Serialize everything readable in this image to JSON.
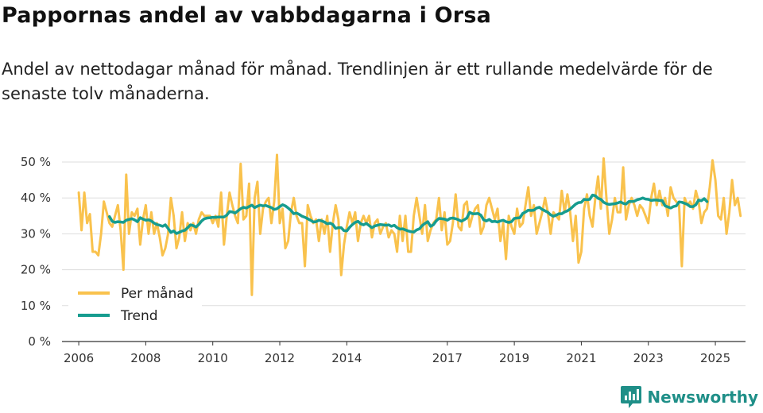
{
  "header": {
    "title": "Pappornas andel av vabbdagarna i Orsa",
    "subtitle": "Andel av nettodagar månad för månad. Trendlinjen är ett rullande medelvärde för de senaste tolv månaderna."
  },
  "brand": {
    "name": "Newsworthy",
    "icon": "newsworthy-logo-icon",
    "color": "#1f8f88"
  },
  "colors": {
    "monthly": "#f9c24d",
    "trend": "#169c8f",
    "grid": "#dddddd",
    "axis": "#333333"
  },
  "chart_data": {
    "type": "line",
    "ylabel": "",
    "xlabel": "",
    "ylim": [
      0,
      52
    ],
    "x_start": 2006.0,
    "x_step": 0.0833333,
    "y_ticks": [
      0,
      10,
      20,
      30,
      40,
      50
    ],
    "y_tick_labels": [
      "0 %",
      "10 %",
      "20 %",
      "30 %",
      "40 %",
      "50 %"
    ],
    "x_ticks": [
      2006,
      2008,
      2010,
      2012,
      2014,
      2017,
      2019,
      2021,
      2023,
      2025
    ],
    "x_tick_labels": [
      "2006",
      "2008",
      "2010",
      "2012",
      "2014",
      "2017",
      "2019",
      "2021",
      "2023",
      "2025"
    ],
    "legend": {
      "position": "bottom-left",
      "items": [
        "Per månad",
        "Trend"
      ]
    },
    "series": [
      {
        "name": "Per månad",
        "values": [
          41.5,
          31,
          41.5,
          33,
          35.5,
          25,
          25,
          24,
          30,
          39,
          36,
          33,
          32,
          35,
          38,
          31,
          20,
          46.5,
          30,
          36,
          35,
          37,
          27,
          34,
          38,
          30,
          36,
          30,
          33,
          29,
          24,
          26,
          30,
          40,
          35,
          26,
          29,
          36,
          28,
          33,
          31,
          33,
          30,
          34,
          36,
          35,
          35,
          35,
          33,
          35,
          32,
          41.5,
          27,
          35,
          41.5,
          38,
          35,
          33,
          49.5,
          34,
          35,
          44,
          13,
          40,
          44.5,
          30,
          37,
          39,
          40,
          33,
          39,
          52,
          33,
          37,
          26,
          28,
          36,
          40,
          35,
          33,
          33,
          21,
          38,
          35,
          33,
          34,
          28,
          34,
          30,
          35,
          25,
          33,
          38,
          34,
          18.5,
          27,
          32,
          36,
          33,
          36,
          28,
          33,
          35,
          33,
          35,
          29,
          33,
          34,
          30,
          32,
          33,
          29,
          31,
          30,
          25,
          35,
          28,
          35,
          25,
          25,
          35,
          40,
          35,
          30,
          38,
          28,
          31,
          33,
          34,
          40,
          31,
          36,
          27,
          28,
          33,
          41,
          32,
          31,
          38,
          39,
          32,
          35,
          37,
          38,
          30,
          32,
          38,
          40,
          37,
          34,
          37,
          28,
          33,
          23,
          35,
          32,
          30,
          37,
          32,
          33,
          38,
          43,
          35,
          38,
          30,
          33,
          36,
          40,
          36,
          30,
          36,
          35,
          34,
          42,
          36,
          41,
          36,
          28,
          35,
          22,
          25,
          37,
          41,
          35,
          32,
          40,
          46,
          37,
          51,
          40,
          30,
          34,
          40,
          36,
          36,
          48.5,
          34,
          38,
          40,
          38,
          35,
          38,
          37,
          35,
          33,
          40,
          44,
          38,
          42,
          38,
          40,
          35,
          43,
          40,
          39,
          38,
          21,
          40,
          38,
          39,
          37,
          42,
          39,
          33,
          36,
          37,
          43,
          50.5,
          45,
          35,
          34,
          40,
          30,
          36,
          45,
          38,
          40,
          35
        ]
      },
      {
        "name": "Trend",
        "start_index": 11,
        "values": [
          34.8,
          33.5,
          33.2,
          33.4,
          33.3,
          33.2,
          33.8,
          34,
          34.2,
          33.9,
          33.4,
          34.5,
          34.1,
          33.8,
          33.9,
          33.6,
          33,
          32.6,
          32.4,
          32.1,
          32.5,
          31.5,
          30.4,
          30.8,
          30.1,
          30.4,
          30.8,
          31,
          31.7,
          32.5,
          32.3,
          31.9,
          32.6,
          33.6,
          34.2,
          34.4,
          34.5,
          34.6,
          34.6,
          34.7,
          34.7,
          34.7,
          35.2,
          36.2,
          36.1,
          35.8,
          36.4,
          37,
          37.4,
          37.2,
          37.6,
          38,
          37.3,
          37.7,
          38,
          37.8,
          37.9,
          37.6,
          37.3,
          36.8,
          37,
          37.6,
          38.1,
          37.8,
          37.2,
          36.5,
          35.6,
          35.8,
          35.4,
          34.9,
          34.6,
          34.2,
          33.8,
          33.3,
          33.4,
          33.8,
          33.6,
          33.3,
          32.8,
          33,
          32.6,
          31.5,
          31.7,
          31.7,
          30.9,
          30.8,
          31.8,
          32.6,
          33.2,
          33.5,
          32.8,
          32.5,
          32.9,
          32.3,
          31.7,
          32.2,
          32.4,
          32.6,
          32.5,
          32.4,
          32.5,
          32.1,
          32.4,
          31.7,
          31.3,
          31.4,
          31.1,
          30.8,
          30.6,
          30.5,
          31.1,
          31.4,
          32.3,
          32.9,
          33.4,
          32.1,
          32.5,
          33.6,
          34.3,
          34.2,
          34.1,
          33.8,
          34.3,
          34.4,
          34.2,
          33.9,
          33.5,
          33.9,
          34.4,
          36,
          35.6,
          35.6,
          35.7,
          35.2,
          33.9,
          33.6,
          34,
          33.4,
          33.5,
          33.3,
          33.6,
          33.8,
          33.4,
          33.2,
          33.4,
          34.3,
          34.4,
          34.5,
          35.7,
          36.1,
          36.6,
          36.5,
          36.6,
          37.2,
          37.4,
          36.8,
          36.4,
          36,
          35.3,
          34.9,
          35.2,
          35.6,
          35.6,
          36.1,
          36.4,
          36.9,
          37.6,
          38.3,
          38.7,
          38.8,
          39.6,
          39.5,
          39.6,
          40.8,
          40.6,
          39.9,
          39.6,
          38.8,
          38.4,
          38.2,
          38.3,
          38.4,
          38.6,
          38.9,
          38.5,
          38.3,
          39,
          39,
          39.1,
          39.5,
          39.7,
          40,
          39.7,
          39.6,
          39.3,
          39.4,
          39.4,
          39.3,
          39.2,
          37.8,
          37.5,
          37.2,
          37.6,
          37.8,
          38.9,
          38.8,
          38.5,
          38.2,
          37.6,
          37.6,
          38.1,
          39.4,
          39.2,
          39.8,
          39
        ]
      }
    ]
  }
}
